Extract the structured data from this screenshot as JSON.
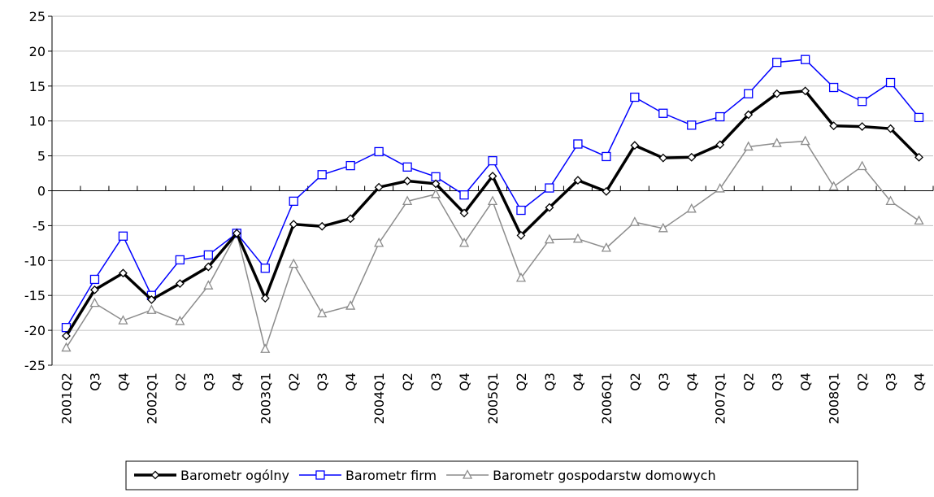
{
  "chart_data": {
    "type": "line",
    "categories": [
      "2001Q2",
      "Q3",
      "Q4",
      "2002Q1",
      "Q2",
      "Q3",
      "Q4",
      "2003Q1",
      "Q2",
      "Q3",
      "Q4",
      "2004Q1",
      "Q2",
      "Q3",
      "Q4",
      "2005Q1",
      "Q2",
      "Q3",
      "Q4",
      "2006Q1",
      "Q2",
      "Q3",
      "Q4",
      "2007Q1",
      "Q2",
      "Q3",
      "Q4",
      "2008Q1",
      "Q2",
      "Q3",
      "Q4"
    ],
    "series": [
      {
        "name": "Barometr ogólny",
        "color": "#000000",
        "marker": "diamond",
        "values": [
          -20.8,
          -14.2,
          -11.8,
          -15.6,
          -13.3,
          -10.9,
          -6.1,
          -15.4,
          -4.8,
          -5.1,
          -4.0,
          0.5,
          1.4,
          1.0,
          -3.2,
          2.1,
          -6.4,
          -2.4,
          1.5,
          -0.1,
          6.5,
          4.7,
          4.8,
          6.6,
          10.9,
          13.9,
          14.3,
          9.3,
          9.2,
          8.9,
          4.8
        ]
      },
      {
        "name": "Barometr firm",
        "color": "#0000ff",
        "marker": "square",
        "values": [
          -19.6,
          -12.7,
          -6.5,
          -15.0,
          -9.9,
          -9.2,
          -6.1,
          -11.1,
          -1.5,
          2.3,
          3.6,
          5.6,
          3.4,
          2.0,
          -0.6,
          4.3,
          -2.8,
          0.4,
          6.7,
          4.9,
          13.4,
          11.1,
          9.4,
          10.6,
          13.9,
          18.4,
          18.8,
          14.8,
          12.8,
          15.5,
          10.5
        ]
      },
      {
        "name": "Barometr gospodarstw domowych",
        "color": "#8c8c8c",
        "marker": "triangle",
        "values": [
          -22.5,
          -16.1,
          -18.6,
          -17.1,
          -18.7,
          -13.6,
          -6.1,
          -22.7,
          -10.5,
          -17.6,
          -16.5,
          -7.5,
          -1.5,
          -0.5,
          -7.5,
          -1.5,
          -12.5,
          -7.0,
          -6.9,
          -8.2,
          -4.5,
          -5.4,
          -2.6,
          0.3,
          6.3,
          6.8,
          7.1,
          0.6,
          3.5,
          -1.5,
          -4.3
        ]
      }
    ],
    "ylim": [
      -25,
      25
    ],
    "yticks": [
      -25,
      -20,
      -15,
      -10,
      -5,
      0,
      5,
      10,
      15,
      20,
      25
    ],
    "grid": true,
    "legend": "bottom"
  }
}
